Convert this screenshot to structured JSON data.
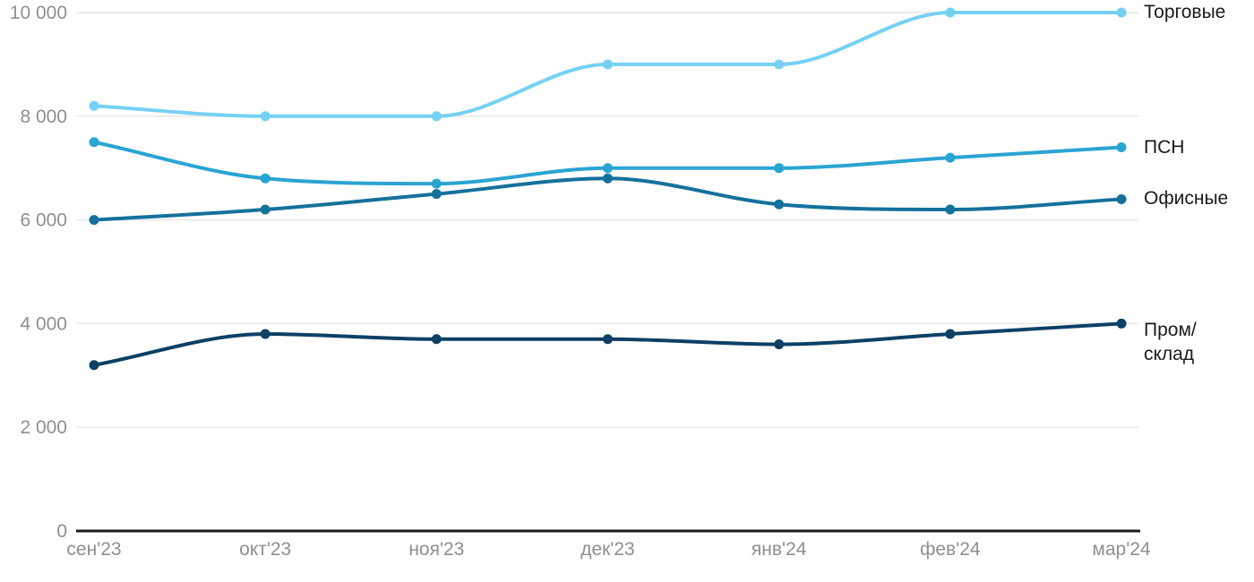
{
  "colors": {
    "background": "#ffffff",
    "grid": "#e7e7e7",
    "axis": "#1a1a1a",
    "tick_text": "#8f8f8f",
    "series_label_text": "#1a1a1a"
  },
  "chart_data": {
    "type": "line",
    "line_style": "smooth-monotone",
    "markers": "filled-circles",
    "grid": "horizontal",
    "legend_position": "right-of-line-ends",
    "categories": [
      "сен'23",
      "окт'23",
      "ноя'23",
      "дек'23",
      "янв'24",
      "фев'24",
      "мар'24"
    ],
    "y_ticks": [
      0,
      2000,
      4000,
      6000,
      8000,
      10000
    ],
    "y_tick_labels": [
      "0",
      "2 000",
      "4 000",
      "6 000",
      "8 000",
      "10 000"
    ],
    "ylim": [
      0,
      10000
    ],
    "series": [
      {
        "name": "Торговые",
        "label_lines": [
          "Торговые"
        ],
        "color": "#75d1f4",
        "values": [
          8200,
          8000,
          8000,
          9000,
          9000,
          10000,
          10000
        ]
      },
      {
        "name": "ПСН",
        "label_lines": [
          "ПСН"
        ],
        "color": "#2aa4d3",
        "values": [
          7500,
          6800,
          6700,
          7000,
          7000,
          7200,
          7400
        ]
      },
      {
        "name": "Офисные",
        "label_lines": [
          "Офисные"
        ],
        "color": "#15719b",
        "values": [
          6000,
          6200,
          6500,
          6800,
          6300,
          6200,
          6400
        ]
      },
      {
        "name": "Пром/склад",
        "label_lines": [
          "Пром/",
          "склад"
        ],
        "color": "#0d4065",
        "values": [
          3200,
          3800,
          3700,
          3700,
          3600,
          3800,
          4000
        ]
      }
    ]
  }
}
